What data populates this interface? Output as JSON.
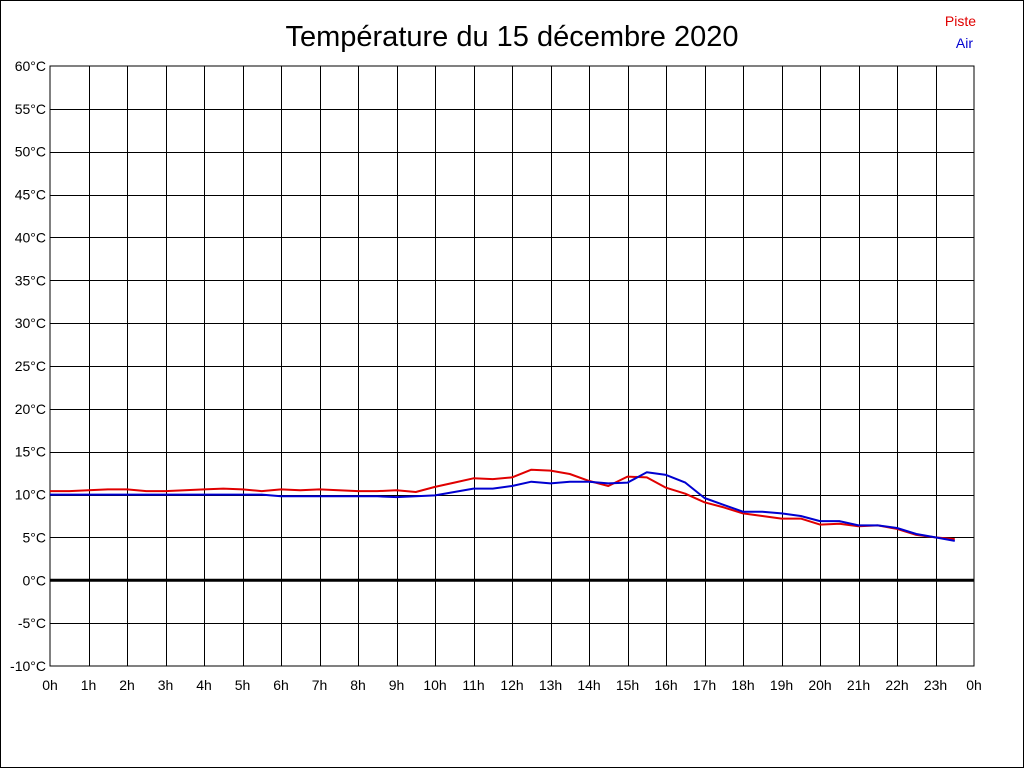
{
  "chart_data": {
    "type": "line",
    "title": "Température du 15 décembre 2020",
    "xlabel": "",
    "ylabel": "",
    "x_ticks": [
      "0h",
      "1h",
      "2h",
      "3h",
      "4h",
      "5h",
      "6h",
      "7h",
      "8h",
      "9h",
      "10h",
      "11h",
      "12h",
      "13h",
      "14h",
      "15h",
      "16h",
      "17h",
      "18h",
      "19h",
      "20h",
      "21h",
      "22h",
      "23h",
      "0h"
    ],
    "y_ticks": [
      "60°C",
      "55°C",
      "50°C",
      "45°C",
      "40°C",
      "35°C",
      "30°C",
      "25°C",
      "20°C",
      "15°C",
      "10°C",
      "5°C",
      "0°C",
      "-5°C",
      "-10°C"
    ],
    "xlim": [
      0,
      24
    ],
    "ylim": [
      -10,
      60
    ],
    "grid": true,
    "zero_line": true,
    "legend_position": "top-right",
    "x_unit": "hour",
    "series": [
      {
        "name": "Piste",
        "color": "#e00000",
        "x": [
          0,
          0.5,
          1,
          1.5,
          2,
          2.5,
          3,
          3.5,
          4,
          4.5,
          5,
          5.5,
          6,
          6.5,
          7,
          7.5,
          8,
          8.5,
          9,
          9.5,
          10,
          10.5,
          11,
          11.5,
          12,
          12.5,
          13,
          13.5,
          14,
          14.5,
          15,
          15.5,
          16,
          16.5,
          17,
          17.5,
          18,
          18.5,
          19,
          19.5,
          20,
          20.5,
          21,
          21.5,
          22,
          22.5,
          23,
          23.5
        ],
        "y": [
          10.4,
          10.4,
          10.5,
          10.6,
          10.6,
          10.4,
          10.4,
          10.5,
          10.6,
          10.7,
          10.6,
          10.4,
          10.6,
          10.5,
          10.6,
          10.5,
          10.4,
          10.4,
          10.5,
          10.3,
          10.9,
          11.4,
          11.9,
          11.8,
          12.0,
          12.9,
          12.8,
          12.4,
          11.6,
          11.0,
          12.1,
          12.0,
          10.8,
          10.1,
          9.1,
          8.5,
          7.8,
          7.5,
          7.2,
          7.2,
          6.5,
          6.6,
          6.3,
          6.4,
          6.0,
          5.3,
          5.0,
          4.8
        ]
      },
      {
        "name": "Air",
        "color": "#0000d0",
        "x": [
          0,
          0.5,
          1,
          1.5,
          2,
          2.5,
          3,
          3.5,
          4,
          4.5,
          5,
          5.5,
          6,
          6.5,
          7,
          7.5,
          8,
          8.5,
          9,
          9.5,
          10,
          10.5,
          11,
          11.5,
          12,
          12.5,
          13,
          13.5,
          14,
          14.5,
          15,
          15.5,
          16,
          16.5,
          17,
          17.5,
          18,
          18.5,
          19,
          19.5,
          20,
          20.5,
          21,
          21.5,
          22,
          22.5,
          23,
          23.5
        ],
        "y": [
          10.0,
          10.0,
          10.0,
          10.0,
          10.0,
          10.0,
          10.0,
          10.0,
          10.0,
          10.0,
          10.0,
          10.0,
          9.8,
          9.8,
          9.8,
          9.8,
          9.8,
          9.8,
          9.7,
          9.8,
          9.9,
          10.3,
          10.7,
          10.7,
          11.0,
          11.5,
          11.3,
          11.5,
          11.5,
          11.3,
          11.4,
          12.6,
          12.3,
          11.4,
          9.6,
          8.8,
          8.0,
          8.0,
          7.8,
          7.5,
          6.9,
          6.9,
          6.4,
          6.4,
          6.1,
          5.4,
          5.0,
          4.6
        ]
      }
    ]
  }
}
